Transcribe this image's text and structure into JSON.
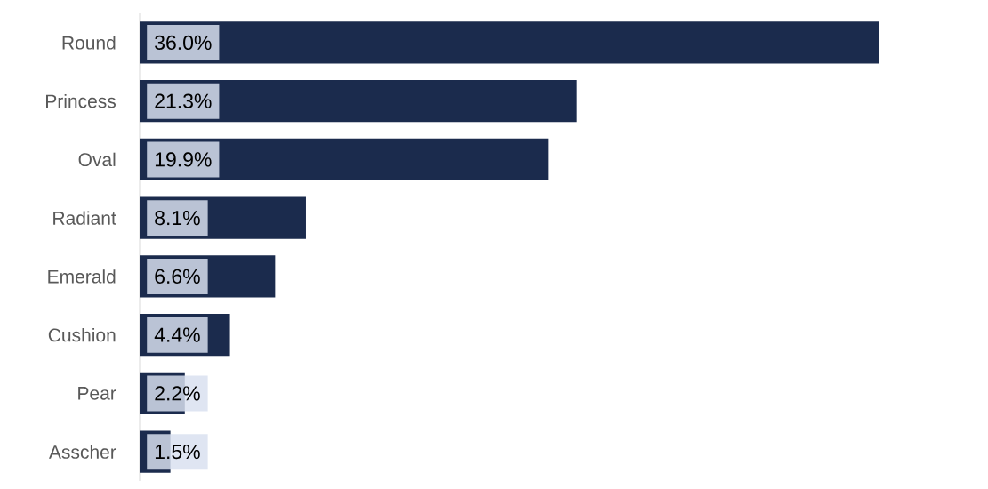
{
  "chart_data": {
    "type": "bar",
    "orientation": "horizontal",
    "categories": [
      "Round",
      "Princess",
      "Oval",
      "Radiant",
      "Emerald",
      "Cushion",
      "Pear",
      "Asscher"
    ],
    "values": [
      36.0,
      21.3,
      19.9,
      8.1,
      6.6,
      4.4,
      2.2,
      1.5
    ],
    "value_labels": [
      "36.0%",
      "21.3%",
      "19.9%",
      "8.1%",
      "6.6%",
      "4.4%",
      "2.2%",
      "1.5%"
    ],
    "color": "#1b2b4d"
  }
}
